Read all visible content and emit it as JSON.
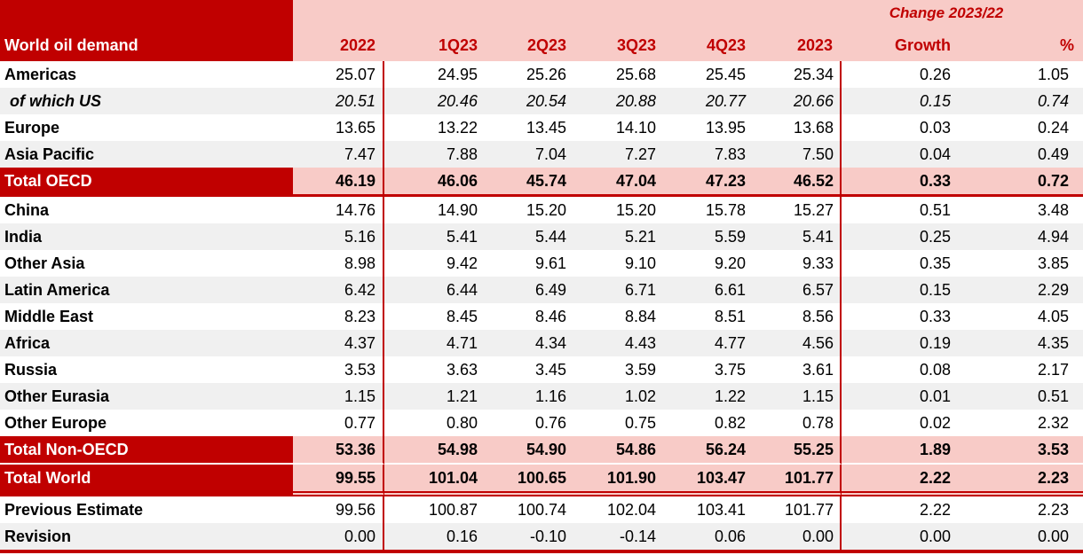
{
  "colors": {
    "dark_red": "#C00000",
    "pink_band": "#F8CBC7",
    "shade_gray": "#F0F0F0",
    "header_text_red": "#C00000",
    "title_text_white": "#FFFFFF",
    "body_text": "#000000"
  },
  "chart_data": {
    "type": "table",
    "title": "World oil demand",
    "change_header": "Change 2023/22",
    "columns": [
      "2022",
      "1Q23",
      "2Q23",
      "3Q23",
      "4Q23",
      "2023",
      "Growth",
      "%"
    ],
    "layout_hints": {
      "vertical_red_rules_after": [
        "2022",
        "2023"
      ],
      "red_rule_below": "Total OECD",
      "white_rule_below": "Total Non-OECD",
      "double_rule_below": "Total World",
      "thick_red_bottom_border": true
    },
    "rows": [
      {
        "label": "Americas",
        "style": "normal",
        "shade": false,
        "sep": null,
        "values": [
          "25.07",
          "24.95",
          "25.26",
          "25.68",
          "25.45",
          "25.34",
          "0.26",
          "1.05"
        ]
      },
      {
        "label": "of which US",
        "style": "sub",
        "shade": true,
        "sep": null,
        "values": [
          "20.51",
          "20.46",
          "20.54",
          "20.88",
          "20.77",
          "20.66",
          "0.15",
          "0.74"
        ]
      },
      {
        "label": "Europe",
        "style": "normal",
        "shade": false,
        "sep": null,
        "values": [
          "13.65",
          "13.22",
          "13.45",
          "14.10",
          "13.95",
          "13.68",
          "0.03",
          "0.24"
        ]
      },
      {
        "label": "Asia Pacific",
        "style": "normal",
        "shade": true,
        "sep": null,
        "values": [
          "7.47",
          "7.88",
          "7.04",
          "7.27",
          "7.83",
          "7.50",
          "0.04",
          "0.49"
        ]
      },
      {
        "label": "Total OECD",
        "style": "total",
        "shade": false,
        "sep": "red",
        "values": [
          "46.19",
          "46.06",
          "45.74",
          "47.04",
          "47.23",
          "46.52",
          "0.33",
          "0.72"
        ]
      },
      {
        "label": "China",
        "style": "normal",
        "shade": false,
        "sep": null,
        "values": [
          "14.76",
          "14.90",
          "15.20",
          "15.20",
          "15.78",
          "15.27",
          "0.51",
          "3.48"
        ]
      },
      {
        "label": "India",
        "style": "normal",
        "shade": true,
        "sep": null,
        "values": [
          "5.16",
          "5.41",
          "5.44",
          "5.21",
          "5.59",
          "5.41",
          "0.25",
          "4.94"
        ]
      },
      {
        "label": "Other Asia",
        "style": "normal",
        "shade": false,
        "sep": null,
        "values": [
          "8.98",
          "9.42",
          "9.61",
          "9.10",
          "9.20",
          "9.33",
          "0.35",
          "3.85"
        ]
      },
      {
        "label": "Latin America",
        "style": "normal",
        "shade": true,
        "sep": null,
        "values": [
          "6.42",
          "6.44",
          "6.49",
          "6.71",
          "6.61",
          "6.57",
          "0.15",
          "2.29"
        ]
      },
      {
        "label": "Middle East",
        "style": "normal",
        "shade": false,
        "sep": null,
        "values": [
          "8.23",
          "8.45",
          "8.46",
          "8.84",
          "8.51",
          "8.56",
          "0.33",
          "4.05"
        ]
      },
      {
        "label": "Africa",
        "style": "normal",
        "shade": true,
        "sep": null,
        "values": [
          "4.37",
          "4.71",
          "4.34",
          "4.43",
          "4.77",
          "4.56",
          "0.19",
          "4.35"
        ]
      },
      {
        "label": "Russia",
        "style": "normal",
        "shade": false,
        "sep": null,
        "values": [
          "3.53",
          "3.63",
          "3.45",
          "3.59",
          "3.75",
          "3.61",
          "0.08",
          "2.17"
        ]
      },
      {
        "label": "Other Eurasia",
        "style": "normal",
        "shade": true,
        "sep": null,
        "values": [
          "1.15",
          "1.21",
          "1.16",
          "1.02",
          "1.22",
          "1.15",
          "0.01",
          "0.51"
        ]
      },
      {
        "label": "Other Europe",
        "style": "normal",
        "shade": false,
        "sep": null,
        "values": [
          "0.77",
          "0.80",
          "0.76",
          "0.75",
          "0.82",
          "0.78",
          "0.02",
          "2.32"
        ]
      },
      {
        "label": "Total Non-OECD",
        "style": "total",
        "shade": false,
        "sep": "white",
        "values": [
          "53.36",
          "54.98",
          "54.90",
          "54.86",
          "56.24",
          "55.25",
          "1.89",
          "3.53"
        ]
      },
      {
        "label": "Total World",
        "style": "total",
        "shade": false,
        "sep": "double",
        "values": [
          "99.55",
          "101.04",
          "100.65",
          "101.90",
          "103.47",
          "101.77",
          "2.22",
          "2.23"
        ]
      },
      {
        "label": "Previous Estimate",
        "style": "normal",
        "shade": false,
        "sep": null,
        "values": [
          "99.56",
          "100.87",
          "100.74",
          "102.04",
          "103.41",
          "101.77",
          "2.22",
          "2.23"
        ]
      },
      {
        "label": "Revision",
        "style": "normal",
        "shade": true,
        "sep": null,
        "values": [
          "0.00",
          "0.16",
          "-0.10",
          "-0.14",
          "0.06",
          "0.00",
          "0.00",
          "0.00"
        ]
      }
    ]
  }
}
